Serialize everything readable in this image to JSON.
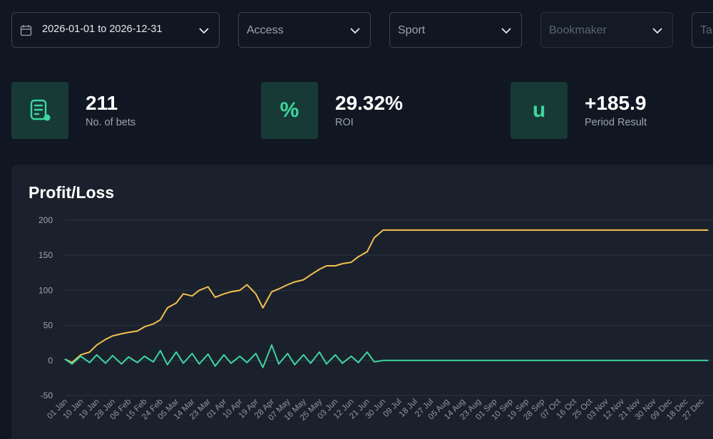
{
  "filters": {
    "date_range": "2026-01-01 to 2026-12-31",
    "access": "Access",
    "sport": "Sport",
    "bookmaker": "Bookmaker",
    "tags": "Ta"
  },
  "stats": [
    {
      "value": "211",
      "caption": "No. of bets",
      "icon": "receipt-icon"
    },
    {
      "value": "29.32%",
      "caption": "ROI",
      "icon": "percent-icon",
      "glyph": "%"
    },
    {
      "value": "+185.9",
      "caption": "Period Result",
      "icon": "units-icon",
      "glyph": "u"
    }
  ],
  "colors": {
    "cumulative": "#f2c14e",
    "daily": "#3ed6a0",
    "accent": "#3ed6a0",
    "tile_bg": "#173a36"
  },
  "chart_title": "Profit/Loss",
  "chart_data": {
    "type": "line",
    "title": "Profit/Loss",
    "ylim": [
      -50,
      200
    ],
    "yticks": [
      -50,
      0,
      50,
      100,
      150,
      200
    ],
    "grid": true,
    "x_ticks": [
      "01 Jan",
      "10 Jan",
      "19 Jan",
      "28 Jan",
      "06 Feb",
      "15 Feb",
      "24 Feb",
      "05 Mar",
      "14 Mar",
      "23 Mar",
      "01 Apr",
      "10 Apr",
      "19 Apr",
      "28 Apr",
      "07 May",
      "16 May",
      "25 May",
      "03 Jun",
      "12 Jun",
      "21 Jun",
      "30 Jun",
      "09 Jul",
      "18 Jul",
      "27 Jul",
      "05 Aug",
      "14 Aug",
      "23 Aug",
      "01 Sep",
      "10 Sep",
      "19 Sep",
      "28 Sep",
      "07 Oct",
      "16 Oct",
      "25 Oct",
      "03 Nov",
      "12 Nov",
      "21 Nov",
      "30 Nov",
      "09 Dec",
      "18 Dec",
      "27 Dec"
    ],
    "series": [
      {
        "color": "#f2c14e",
        "x": [
          "01 Jan",
          "05 Jan",
          "10 Jan",
          "15 Jan",
          "19 Jan",
          "24 Jan",
          "28 Jan",
          "02 Feb",
          "06 Feb",
          "11 Feb",
          "15 Feb",
          "20 Feb",
          "24 Feb",
          "28 Feb",
          "05 Mar",
          "09 Mar",
          "14 Mar",
          "18 Mar",
          "23 Mar",
          "27 Mar",
          "01 Apr",
          "05 Apr",
          "10 Apr",
          "14 Apr",
          "19 Apr",
          "23 Apr",
          "28 Apr",
          "02 May",
          "07 May",
          "11 May",
          "16 May",
          "20 May",
          "25 May",
          "29 May",
          "03 Jun",
          "07 Jun",
          "12 Jun",
          "16 Jun",
          "21 Jun",
          "25 Jun",
          "30 Jun",
          "09 Jul",
          "31 Dec"
        ],
        "values": [
          2,
          -3,
          8,
          12,
          22,
          30,
          35,
          38,
          40,
          42,
          48,
          52,
          58,
          75,
          82,
          95,
          92,
          100,
          105,
          90,
          95,
          98,
          100,
          108,
          95,
          75,
          98,
          102,
          108,
          112,
          115,
          122,
          130,
          135,
          135,
          138,
          140,
          148,
          155,
          175,
          185.9,
          185.9,
          185.9
        ]
      },
      {
        "color": "#3ed6a0",
        "x": [
          "01 Jan",
          "05 Jan",
          "10 Jan",
          "15 Jan",
          "19 Jan",
          "24 Jan",
          "28 Jan",
          "02 Feb",
          "06 Feb",
          "11 Feb",
          "15 Feb",
          "20 Feb",
          "24 Feb",
          "28 Feb",
          "05 Mar",
          "09 Mar",
          "14 Mar",
          "18 Mar",
          "23 Mar",
          "27 Mar",
          "01 Apr",
          "05 Apr",
          "10 Apr",
          "14 Apr",
          "19 Apr",
          "23 Apr",
          "28 Apr",
          "02 May",
          "07 May",
          "11 May",
          "16 May",
          "20 May",
          "25 May",
          "29 May",
          "03 Jun",
          "07 Jun",
          "12 Jun",
          "16 Jun",
          "21 Jun",
          "25 Jun",
          "30 Jun",
          "09 Jul",
          "31 Dec"
        ],
        "values": [
          2,
          -5,
          6,
          -3,
          8,
          -4,
          7,
          -5,
          5,
          -3,
          6,
          -2,
          14,
          -6,
          12,
          -4,
          10,
          -5,
          9,
          -8,
          8,
          -4,
          6,
          -3,
          10,
          -10,
          22,
          -5,
          10,
          -6,
          8,
          -4,
          12,
          -5,
          8,
          -4,
          6,
          -3,
          12,
          -2,
          0,
          0,
          0
        ]
      }
    ]
  }
}
